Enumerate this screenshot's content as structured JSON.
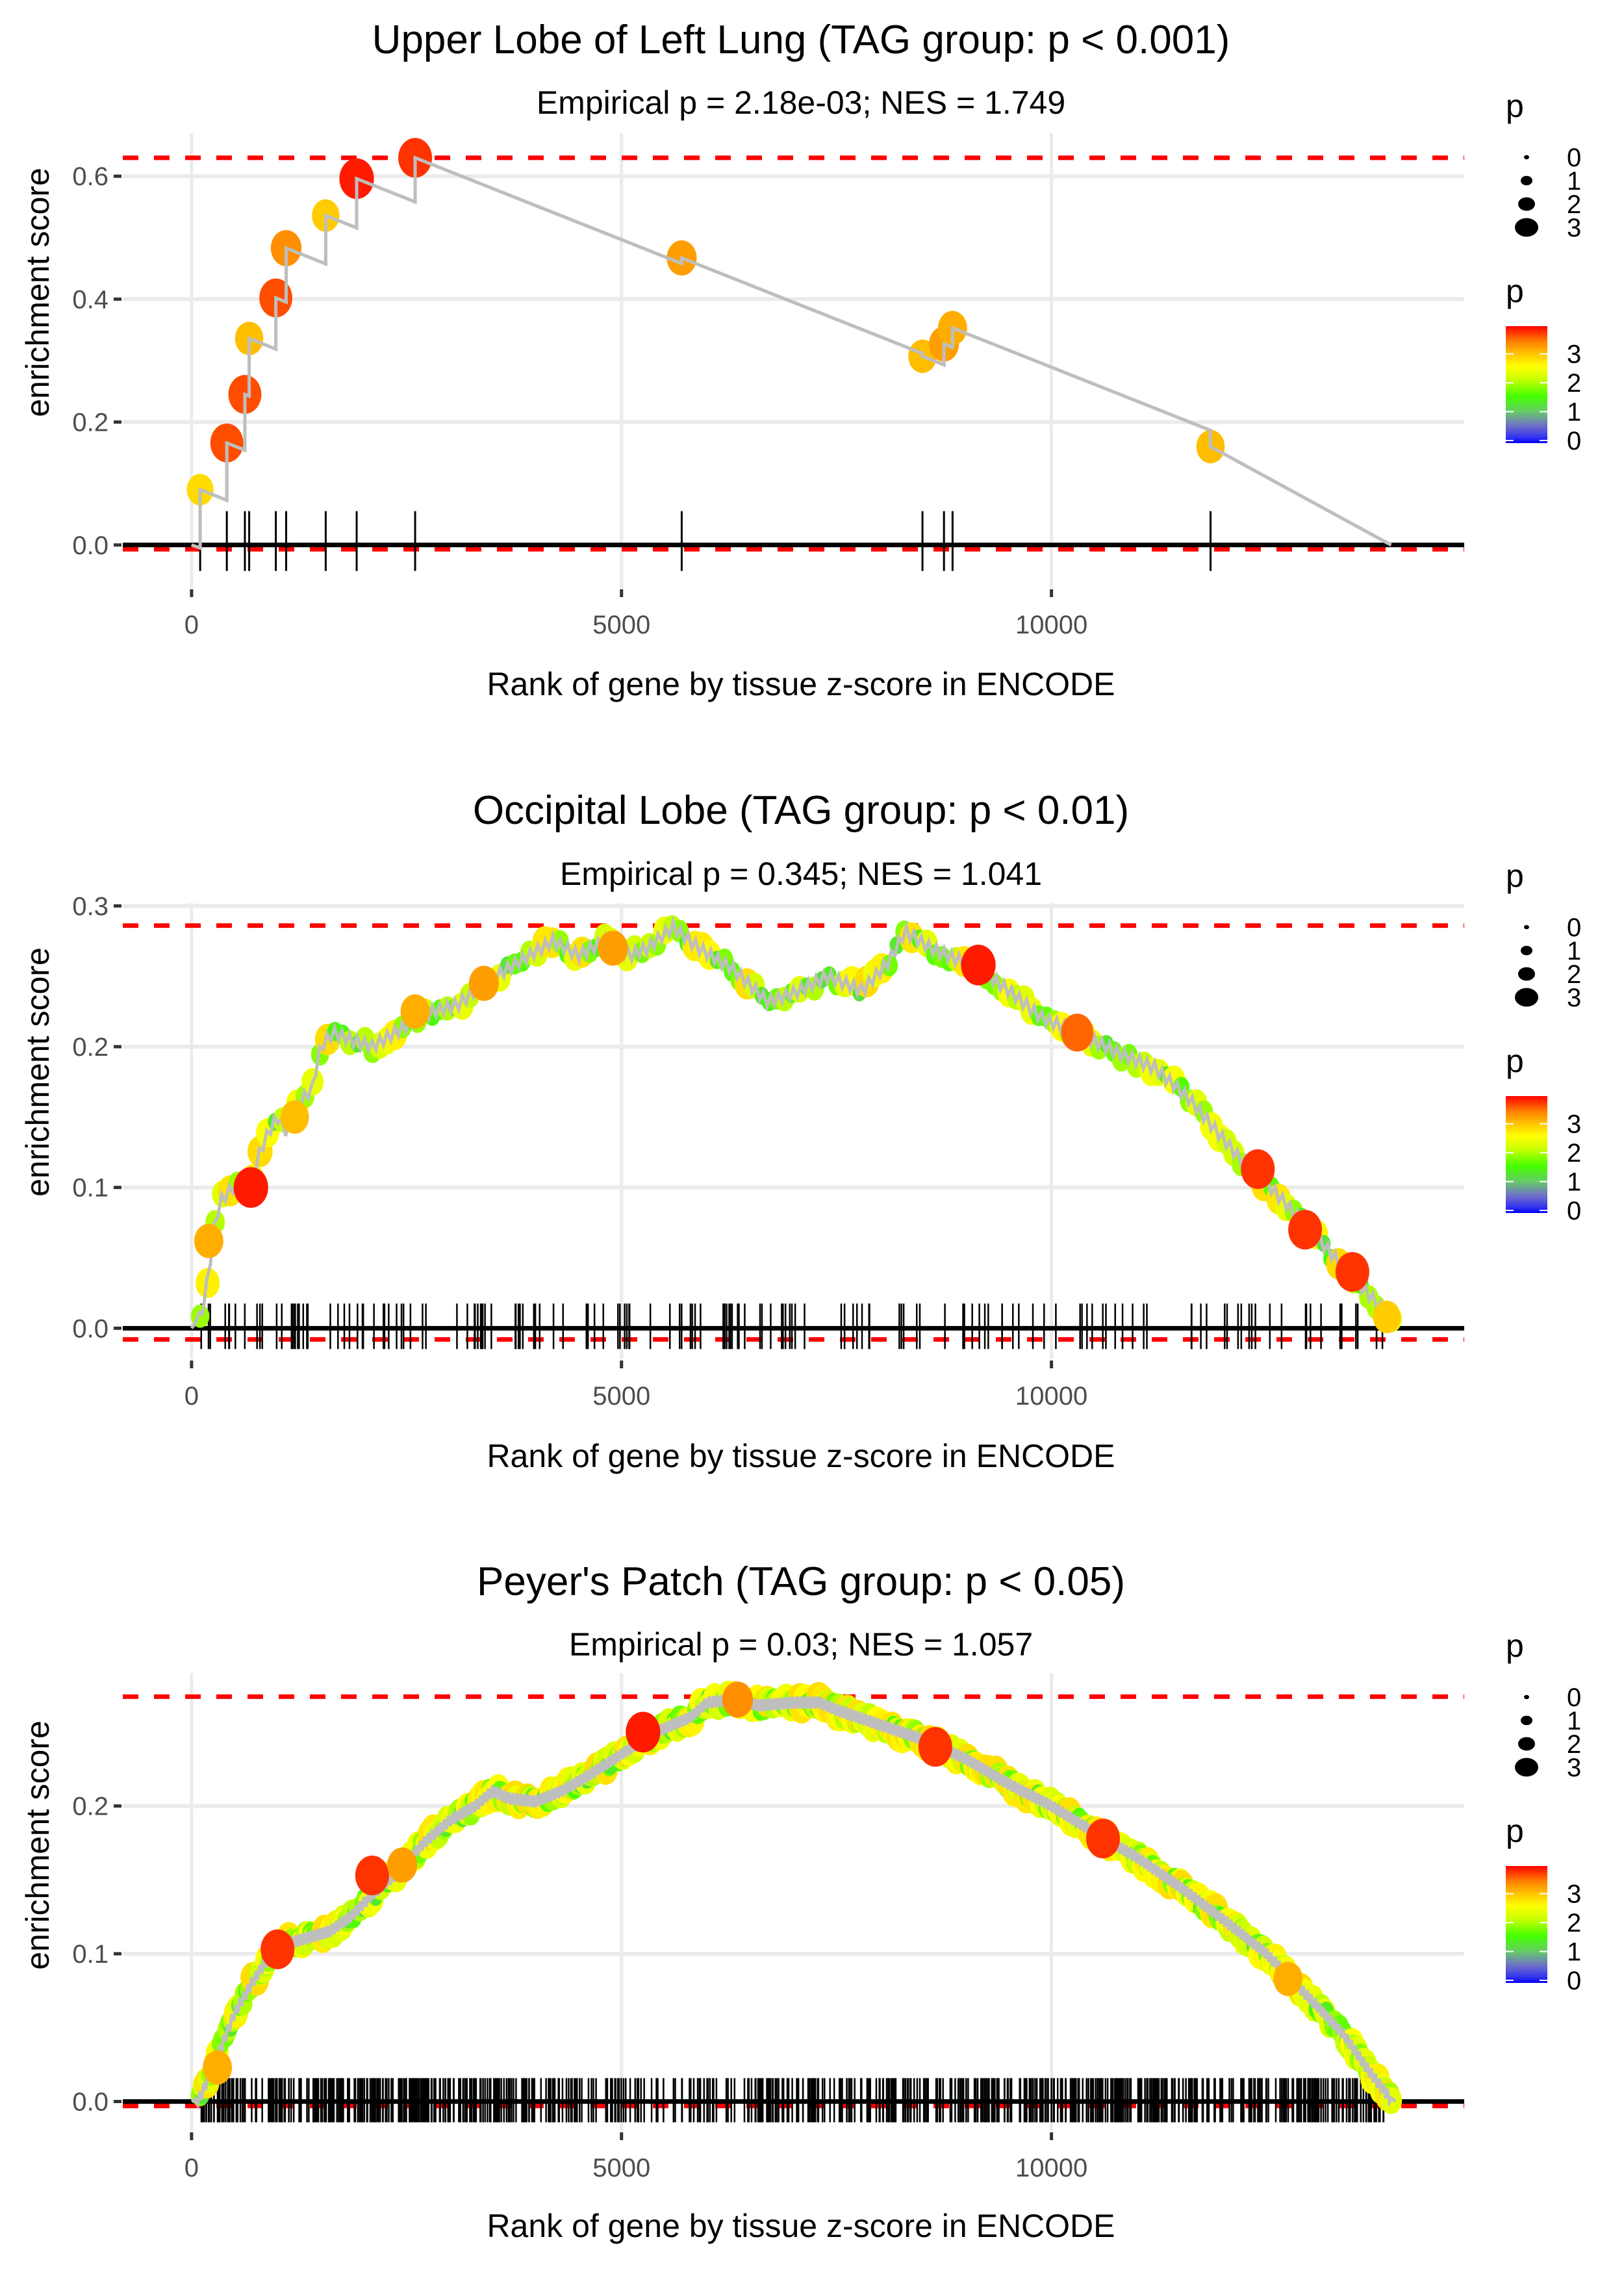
{
  "figure": {
    "colors": {
      "gridline": "#ebebeb",
      "dashed_line": "#ff0000",
      "es_line": "#bebebe",
      "rug": "#000000",
      "zero_line": "#000000",
      "gradient": [
        "#0000ff",
        "#7f7fbf",
        "#55dd55",
        "#44ff00",
        "#ccff00",
        "#ffff00",
        "#ffcc00",
        "#ff8800",
        "#ff0000"
      ]
    }
  },
  "chart_data": [
    {
      "type": "line",
      "title": "Upper Lobe of Left Lung (TAG group: p < 0.001)",
      "subtitle": "Empirical p = 2.18e-03; NES = 1.749",
      "xlabel": "Rank of gene by tissue z-score in ENCODE",
      "ylabel": "enrichment score",
      "xlim": [
        -800,
        14800
      ],
      "ylim": [
        -0.07,
        0.67
      ],
      "xticks": [
        0,
        5000,
        10000
      ],
      "xtick_labels": [
        "0",
        "5000",
        "10000"
      ],
      "yticks": [
        0.0,
        0.2,
        0.4,
        0.6
      ],
      "ytick_labels": [
        "0.0",
        "0.2",
        "0.4",
        "0.6"
      ],
      "max_es": 0.63,
      "min_es": -0.007,
      "grid": true,
      "end_x": 13950,
      "points": [
        {
          "x": 100,
          "y": 0.09,
          "p": 2.9
        },
        {
          "x": 410,
          "y": 0.166,
          "p": 3.7
        },
        {
          "x": 620,
          "y": 0.245,
          "p": 3.7
        },
        {
          "x": 670,
          "y": 0.336,
          "p": 3.1
        },
        {
          "x": 980,
          "y": 0.402,
          "p": 3.7
        },
        {
          "x": 1100,
          "y": 0.483,
          "p": 3.4
        },
        {
          "x": 1560,
          "y": 0.536,
          "p": 3.0
        },
        {
          "x": 1920,
          "y": 0.596,
          "p": 3.9
        },
        {
          "x": 2600,
          "y": 0.63,
          "p": 3.8
        },
        {
          "x": 5700,
          "y": 0.467,
          "p": 3.3
        },
        {
          "x": 8500,
          "y": 0.307,
          "p": 3.1
        },
        {
          "x": 8750,
          "y": 0.327,
          "p": 3.3
        },
        {
          "x": 8850,
          "y": 0.353,
          "p": 3.2
        },
        {
          "x": 11850,
          "y": 0.16,
          "p": 3.1
        }
      ],
      "legend": {
        "size_title": "p",
        "size_labels": [
          "0",
          "1",
          "2",
          "3"
        ],
        "color_title": "p",
        "color_labels": [
          "3",
          "2",
          "1",
          "0"
        ],
        "placement": "right"
      }
    },
    {
      "type": "line",
      "title": "Occipital Lobe (TAG group: p < 0.01)",
      "subtitle": "Empirical p = 0.345; NES = 1.041",
      "xlabel": "Rank of gene by tissue z-score in ENCODE",
      "ylabel": "enrichment score",
      "xlim": [
        -800,
        14800
      ],
      "ylim": [
        -0.022,
        0.302
      ],
      "xticks": [
        0,
        5000,
        10000
      ],
      "xtick_labels": [
        "0",
        "5000",
        "10000"
      ],
      "yticks": [
        0.0,
        0.1,
        0.2,
        0.3
      ],
      "ytick_labels": [
        "0.0",
        "0.1",
        "0.2",
        "0.3"
      ],
      "max_es": 0.286,
      "min_es": -0.008,
      "grid": true,
      "end_x": 14000,
      "curve": [
        [
          0,
          0
        ],
        [
          120,
          0.01
        ],
        [
          200,
          0.04
        ],
        [
          260,
          0.07
        ],
        [
          330,
          0.09
        ],
        [
          480,
          0.1
        ],
        [
          700,
          0.1
        ],
        [
          760,
          0.12
        ],
        [
          900,
          0.14
        ],
        [
          1000,
          0.15
        ],
        [
          1100,
          0.14
        ],
        [
          1250,
          0.16
        ],
        [
          1400,
          0.17
        ],
        [
          1500,
          0.2
        ],
        [
          1650,
          0.21
        ],
        [
          1850,
          0.205
        ],
        [
          2100,
          0.2
        ],
        [
          2500,
          0.215
        ],
        [
          2800,
          0.225
        ],
        [
          3100,
          0.23
        ],
        [
          3400,
          0.245
        ],
        [
          3800,
          0.26
        ],
        [
          4200,
          0.275
        ],
        [
          4500,
          0.265
        ],
        [
          4800,
          0.275
        ],
        [
          5100,
          0.265
        ],
        [
          5300,
          0.27
        ],
        [
          5600,
          0.285
        ],
        [
          5900,
          0.27
        ],
        [
          6300,
          0.255
        ],
        [
          6700,
          0.232
        ],
        [
          7000,
          0.238
        ],
        [
          7400,
          0.25
        ],
        [
          7800,
          0.24
        ],
        [
          8100,
          0.26
        ],
        [
          8300,
          0.282
        ],
        [
          8600,
          0.27
        ],
        [
          8900,
          0.262
        ],
        [
          9100,
          0.258
        ],
        [
          9500,
          0.24
        ],
        [
          9900,
          0.22
        ],
        [
          10300,
          0.21
        ],
        [
          10800,
          0.195
        ],
        [
          11200,
          0.185
        ],
        [
          11600,
          0.163
        ],
        [
          12200,
          0.12
        ],
        [
          12400,
          0.11
        ],
        [
          12700,
          0.09
        ],
        [
          13000,
          0.07
        ],
        [
          13300,
          0.05
        ],
        [
          13600,
          0.03
        ],
        [
          13900,
          0.01
        ],
        [
          14000,
          0.0
        ]
      ],
      "highlight_points": [
        {
          "x": 200,
          "y": 0.062,
          "p": 3.2
        },
        {
          "x": 690,
          "y": 0.1,
          "p": 3.9
        },
        {
          "x": 1200,
          "y": 0.15,
          "p": 3.1
        },
        {
          "x": 2600,
          "y": 0.225,
          "p": 3.2
        },
        {
          "x": 3400,
          "y": 0.245,
          "p": 3.3
        },
        {
          "x": 4900,
          "y": 0.27,
          "p": 3.3
        },
        {
          "x": 9150,
          "y": 0.258,
          "p": 3.9
        },
        {
          "x": 10300,
          "y": 0.21,
          "p": 3.6
        },
        {
          "x": 12400,
          "y": 0.113,
          "p": 3.8
        },
        {
          "x": 12950,
          "y": 0.07,
          "p": 3.8
        },
        {
          "x": 13500,
          "y": 0.04,
          "p": 3.8
        },
        {
          "x": 13900,
          "y": 0.008,
          "p": 3.0
        }
      ],
      "rug_density": 160,
      "legend": {
        "size_title": "p",
        "size_labels": [
          "0",
          "1",
          "2",
          "3"
        ],
        "color_title": "p",
        "color_labels": [
          "3",
          "2",
          "1",
          "0"
        ],
        "placement": "right"
      }
    },
    {
      "type": "line",
      "title": "Peyer's Patch (TAG group: p < 0.05)",
      "subtitle": "Empirical p = 0.03; NES = 1.057",
      "xlabel": "Rank of gene by tissue z-score in ENCODE",
      "ylabel": "enrichment score",
      "xlim": [
        -800,
        14800
      ],
      "ylim": [
        -0.02,
        0.29
      ],
      "xticks": [
        0,
        5000,
        10000
      ],
      "xtick_labels": [
        "0",
        "5000",
        "10000"
      ],
      "yticks": [
        0.0,
        0.1,
        0.2
      ],
      "ytick_labels": [
        "0.0",
        "0.1",
        "0.2"
      ],
      "max_es": 0.274,
      "min_es": -0.003,
      "grid": true,
      "end_x": 14000,
      "curve": [
        [
          0,
          0
        ],
        [
          100,
          0.003
        ],
        [
          300,
          0.03
        ],
        [
          500,
          0.06
        ],
        [
          700,
          0.08
        ],
        [
          900,
          0.098
        ],
        [
          1000,
          0.105
        ],
        [
          1300,
          0.11
        ],
        [
          1600,
          0.115
        ],
        [
          1850,
          0.125
        ],
        [
          2100,
          0.14
        ],
        [
          2400,
          0.155
        ],
        [
          2700,
          0.175
        ],
        [
          3000,
          0.19
        ],
        [
          3300,
          0.2
        ],
        [
          3500,
          0.21
        ],
        [
          3700,
          0.205
        ],
        [
          4000,
          0.203
        ],
        [
          4300,
          0.21
        ],
        [
          4600,
          0.22
        ],
        [
          5000,
          0.235
        ],
        [
          5400,
          0.25
        ],
        [
          5800,
          0.26
        ],
        [
          6000,
          0.27
        ],
        [
          6300,
          0.272
        ],
        [
          6600,
          0.268
        ],
        [
          7000,
          0.27
        ],
        [
          7300,
          0.27
        ],
        [
          7500,
          0.265
        ],
        [
          8000,
          0.255
        ],
        [
          8500,
          0.245
        ],
        [
          9000,
          0.232
        ],
        [
          9500,
          0.215
        ],
        [
          10000,
          0.2
        ],
        [
          10500,
          0.182
        ],
        [
          11000,
          0.165
        ],
        [
          11500,
          0.145
        ],
        [
          12000,
          0.123
        ],
        [
          12500,
          0.1
        ],
        [
          13000,
          0.07
        ],
        [
          13400,
          0.045
        ],
        [
          13700,
          0.02
        ],
        [
          13900,
          0.005
        ],
        [
          14000,
          0.0
        ]
      ],
      "highlight_points": [
        {
          "x": 300,
          "y": 0.023,
          "p": 3.2
        },
        {
          "x": 1000,
          "y": 0.103,
          "p": 3.8
        },
        {
          "x": 2100,
          "y": 0.153,
          "p": 3.8
        },
        {
          "x": 2450,
          "y": 0.16,
          "p": 3.3
        },
        {
          "x": 5250,
          "y": 0.25,
          "p": 3.9
        },
        {
          "x": 6350,
          "y": 0.272,
          "p": 3.4
        },
        {
          "x": 8650,
          "y": 0.24,
          "p": 3.8
        },
        {
          "x": 10600,
          "y": 0.178,
          "p": 3.8
        },
        {
          "x": 12750,
          "y": 0.083,
          "p": 3.2
        }
      ],
      "rug_density": 700,
      "legend": {
        "size_title": "p",
        "size_labels": [
          "0",
          "1",
          "2",
          "3"
        ],
        "color_title": "p",
        "color_labels": [
          "3",
          "2",
          "1",
          "0"
        ],
        "placement": "right"
      }
    }
  ]
}
